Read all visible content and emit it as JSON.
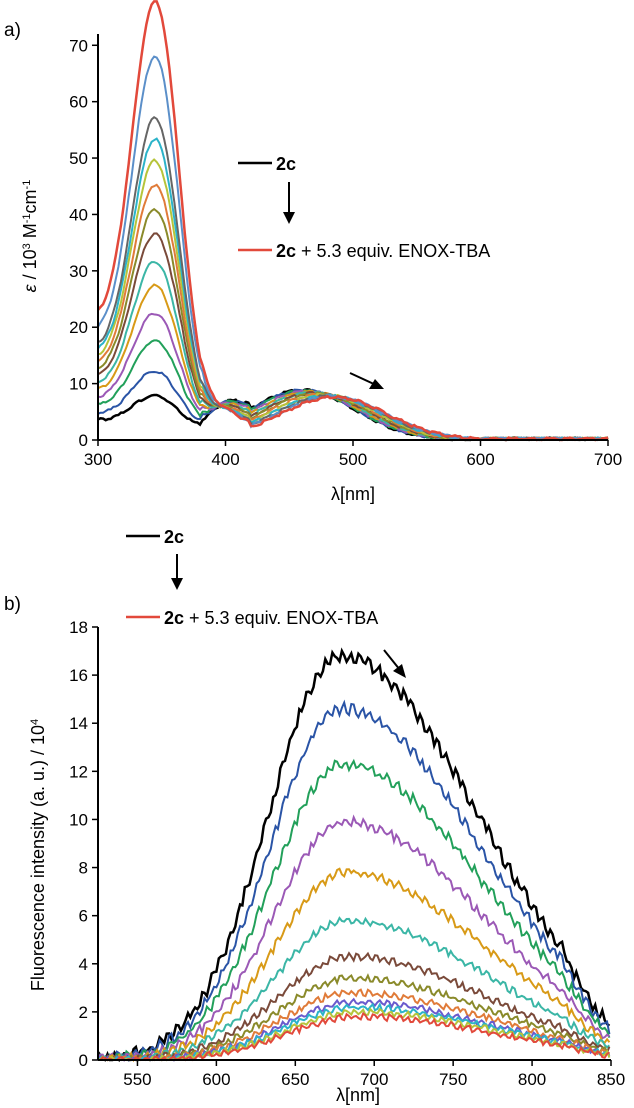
{
  "chart_data": [
    {
      "panel_label": "a)",
      "type": "line",
      "xlabel": "λ[nm]",
      "ylabel_parts": [
        "ε",
        " / 10",
        "3",
        " M",
        "-1",
        "cm",
        "-1"
      ],
      "xlim": [
        300,
        700
      ],
      "ylim": [
        0,
        72
      ],
      "xticks": [
        "300",
        "400",
        "500",
        "600",
        "700"
      ],
      "yticks": [
        "0",
        "10",
        "20",
        "30",
        "40",
        "50",
        "60",
        "70"
      ],
      "legend": {
        "start_label": "2c",
        "end_label_bold": "2c",
        "end_label_rest": " + 5.3 equiv. ENOX-TBA"
      },
      "peak1": {
        "center": 345,
        "sigma": 20,
        "base300": [
          10,
          12,
          14,
          16,
          19,
          22,
          24,
          26,
          28,
          30,
          32,
          34,
          36
        ]
      },
      "series": [
        {
          "color": "#000000",
          "peak": 6.5,
          "band_center": 460,
          "band_height": 8.8
        },
        {
          "color": "#2a54a6",
          "peak": 10.5,
          "band_center": 461,
          "band_height": 8.8
        },
        {
          "color": "#22a05a",
          "peak": 15.5,
          "band_center": 462,
          "band_height": 8.7
        },
        {
          "color": "#9b59b6",
          "peak": 20,
          "band_center": 464,
          "band_height": 8.6
        },
        {
          "color": "#d89a17",
          "peak": 24.5,
          "band_center": 466,
          "band_height": 8.5
        },
        {
          "color": "#3bb6a6",
          "peak": 28.5,
          "band_center": 468,
          "band_height": 8.4
        },
        {
          "color": "#7a4a3a",
          "peak": 33,
          "band_center": 470,
          "band_height": 8.3
        },
        {
          "color": "#8a8a2a",
          "peak": 37,
          "band_center": 472,
          "band_height": 8.2
        },
        {
          "color": "#e07b39",
          "peak": 41,
          "band_center": 475,
          "band_height": 8.1
        },
        {
          "color": "#b6c43a",
          "peak": 45,
          "band_center": 477,
          "band_height": 8.0
        },
        {
          "color": "#2bb3c9",
          "peak": 48.5,
          "band_center": 479,
          "band_height": 7.9
        },
        {
          "color": "#666666",
          "peak": 52,
          "band_center": 481,
          "band_height": 7.8
        },
        {
          "color": "#5b8fc9",
          "peak": 62,
          "band_center": 483,
          "band_height": 7.7
        },
        {
          "color": "#e2493b",
          "peak": 71,
          "band_center": 485,
          "band_height": 7.6
        }
      ]
    },
    {
      "panel_label": "b)",
      "type": "line",
      "xlabel": "λ[nm]",
      "ylabel_parts": [
        "Fluorescence intensity (a. u.) / 10",
        "4"
      ],
      "xlim": [
        525,
        850
      ],
      "ylim": [
        0,
        18
      ],
      "xticks": [
        "550",
        "600",
        "650",
        "700",
        "750",
        "800",
        "850"
      ],
      "yticks": [
        "0",
        "2",
        "4",
        "6",
        "8",
        "10",
        "12",
        "14",
        "16",
        "18"
      ],
      "legend": {
        "start_label": "2c",
        "end_label_bold": "2c",
        "end_label_rest": " + 5.3 equiv. ENOX-TBA"
      },
      "series": [
        {
          "color": "#000000",
          "peak": 16.8,
          "center": 678
        },
        {
          "color": "#2a54a6",
          "peak": 14.6,
          "center": 679
        },
        {
          "color": "#22a05a",
          "peak": 12.3,
          "center": 680
        },
        {
          "color": "#9b59b6",
          "peak": 9.9,
          "center": 681
        },
        {
          "color": "#d89a17",
          "peak": 7.8,
          "center": 682
        },
        {
          "color": "#3bb6a6",
          "peak": 5.8,
          "center": 683
        },
        {
          "color": "#7a4a3a",
          "peak": 4.3,
          "center": 684
        },
        {
          "color": "#8a8a2a",
          "peak": 3.4,
          "center": 685
        },
        {
          "color": "#e07b39",
          "peak": 2.8,
          "center": 686
        },
        {
          "color": "#6a5acd",
          "peak": 2.4,
          "center": 687
        },
        {
          "color": "#2bb3c9",
          "peak": 2.2,
          "center": 688
        },
        {
          "color": "#b6c43a",
          "peak": 2.0,
          "center": 689
        },
        {
          "color": "#e2493b",
          "peak": 1.8,
          "center": 690
        }
      ]
    }
  ]
}
